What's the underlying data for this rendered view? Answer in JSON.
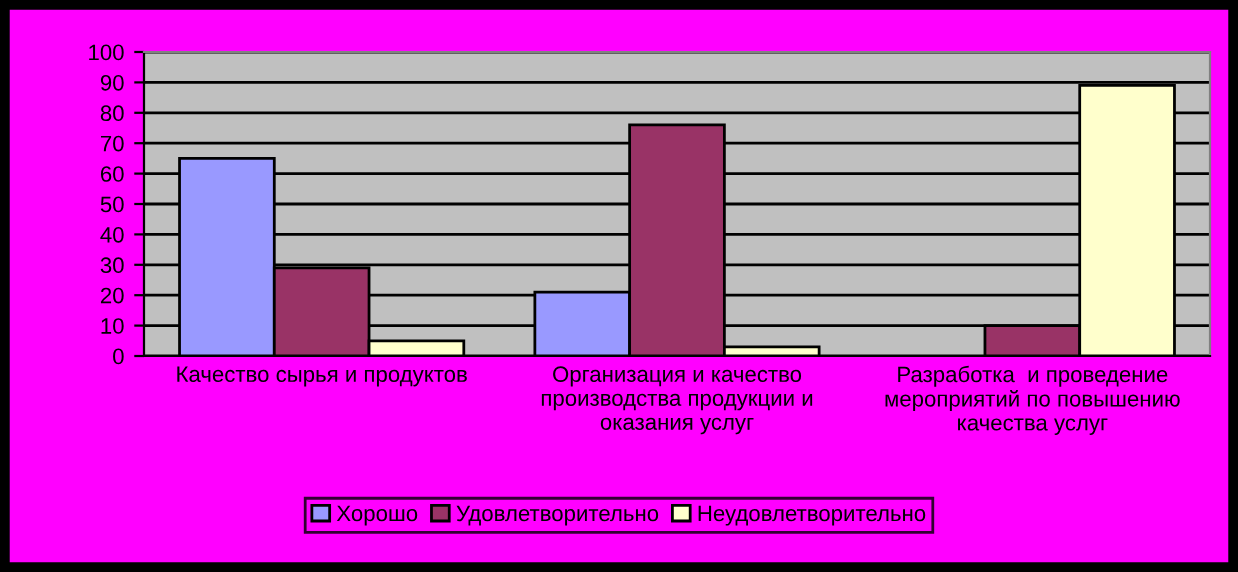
{
  "chart_data": {
    "type": "bar",
    "categories": [
      "Качество сырья и продуктов",
      "Организация и качество\nпроизводства продукции и\nоказания услуг",
      "Разработка  и проведение\nмероприятий по повышению\nкачества услуг"
    ],
    "series": [
      {
        "name": "Хорошо",
        "color": "#9999ff",
        "values": [
          65,
          21,
          null
        ]
      },
      {
        "name": "Удовлетворительно",
        "color": "#993366",
        "values": [
          29,
          76,
          10
        ]
      },
      {
        "name": "Неудовлетворительно",
        "color": "#ffffcc",
        "values": [
          5,
          3,
          89
        ]
      }
    ],
    "ylim": [
      0,
      100
    ],
    "yticks": [
      0,
      10,
      20,
      30,
      40,
      50,
      60,
      70,
      80,
      90,
      100
    ],
    "grid": "y",
    "legend": "bottom"
  }
}
